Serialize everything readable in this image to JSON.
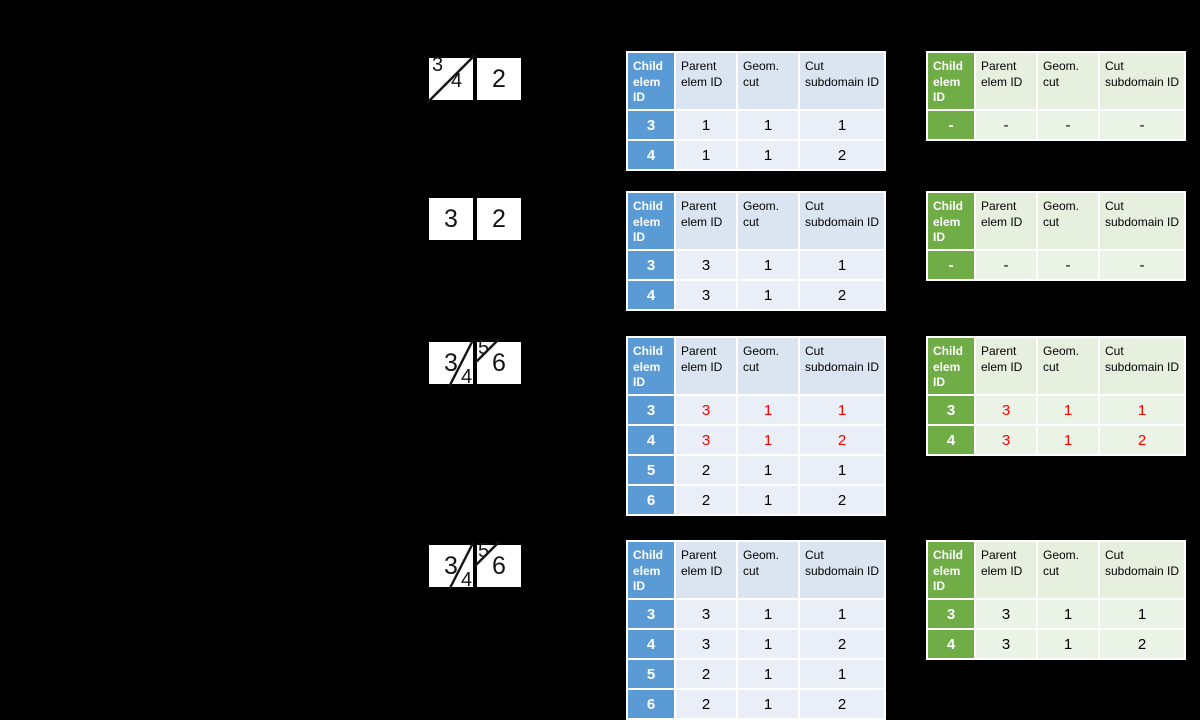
{
  "colors": {
    "background": "#000000",
    "blue_accent": "#5b9bd5",
    "blue_header_bg": "#dbe5f1",
    "blue_body_bg": "#e9eef7",
    "green_accent": "#70ad47",
    "green_header_bg": "#e7efdf",
    "green_body_bg": "#ebf2e6",
    "highlight_red": "#ff0000",
    "element_box_bg": "#ffffff"
  },
  "column_headers": [
    "Child elem ID",
    "Parent elem ID",
    "Geom. cut",
    "Cut subdomain ID"
  ],
  "scenarios": [
    {
      "diagram": {
        "box1_top_left": "3",
        "box1_bottom_right": "4",
        "box2_center": "2"
      },
      "blue": {
        "rows": [
          [
            {
              "v": "3"
            },
            {
              "v": "1"
            },
            {
              "v": "1"
            },
            {
              "v": "1"
            }
          ],
          [
            {
              "v": "4"
            },
            {
              "v": "1"
            },
            {
              "v": "1"
            },
            {
              "v": "2"
            }
          ]
        ]
      },
      "green": {
        "rows": [
          [
            {
              "v": "-"
            },
            {
              "v": "-"
            },
            {
              "v": "-"
            },
            {
              "v": "-"
            }
          ]
        ]
      }
    },
    {
      "diagram": {
        "box1_center": "3",
        "box2_center": "2"
      },
      "blue": {
        "rows": [
          [
            {
              "v": "3"
            },
            {
              "v": "3"
            },
            {
              "v": "1"
            },
            {
              "v": "1"
            }
          ],
          [
            {
              "v": "4"
            },
            {
              "v": "3"
            },
            {
              "v": "1"
            },
            {
              "v": "2"
            }
          ]
        ]
      },
      "green": {
        "rows": [
          [
            {
              "v": "-"
            },
            {
              "v": "-"
            },
            {
              "v": "-"
            },
            {
              "v": "-"
            }
          ]
        ]
      }
    },
    {
      "diagram": {
        "box1_center": "3",
        "box1_bottom_right": "4",
        "box2_top_left": "5",
        "box2_center": "6"
      },
      "blue": {
        "rows": [
          [
            {
              "v": "3"
            },
            {
              "v": "3",
              "red": true
            },
            {
              "v": "1",
              "red": true
            },
            {
              "v": "1",
              "red": true
            }
          ],
          [
            {
              "v": "4"
            },
            {
              "v": "3",
              "red": true
            },
            {
              "v": "1",
              "red": true
            },
            {
              "v": "2",
              "red": true
            }
          ],
          [
            {
              "v": "5"
            },
            {
              "v": "2"
            },
            {
              "v": "1"
            },
            {
              "v": "1"
            }
          ],
          [
            {
              "v": "6"
            },
            {
              "v": "2"
            },
            {
              "v": "1"
            },
            {
              "v": "2"
            }
          ]
        ]
      },
      "green": {
        "rows": [
          [
            {
              "v": "3"
            },
            {
              "v": "3",
              "red": true
            },
            {
              "v": "1",
              "red": true
            },
            {
              "v": "1",
              "red": true
            }
          ],
          [
            {
              "v": "4"
            },
            {
              "v": "3",
              "red": true
            },
            {
              "v": "1",
              "red": true
            },
            {
              "v": "2",
              "red": true
            }
          ]
        ]
      }
    },
    {
      "diagram": {
        "box1_center": "3",
        "box1_bottom_right": "4",
        "box2_top_left": "5",
        "box2_center": "6"
      },
      "blue": {
        "rows": [
          [
            {
              "v": "3"
            },
            {
              "v": "3"
            },
            {
              "v": "1"
            },
            {
              "v": "1"
            }
          ],
          [
            {
              "v": "4"
            },
            {
              "v": "3"
            },
            {
              "v": "1"
            },
            {
              "v": "2"
            }
          ],
          [
            {
              "v": "5"
            },
            {
              "v": "2"
            },
            {
              "v": "1"
            },
            {
              "v": "1"
            }
          ],
          [
            {
              "v": "6"
            },
            {
              "v": "2"
            },
            {
              "v": "1"
            },
            {
              "v": "2"
            }
          ]
        ]
      },
      "green": {
        "rows": [
          [
            {
              "v": "3"
            },
            {
              "v": "3"
            },
            {
              "v": "1"
            },
            {
              "v": "1"
            }
          ],
          [
            {
              "v": "4"
            },
            {
              "v": "3"
            },
            {
              "v": "1"
            },
            {
              "v": "2"
            }
          ]
        ]
      }
    }
  ]
}
